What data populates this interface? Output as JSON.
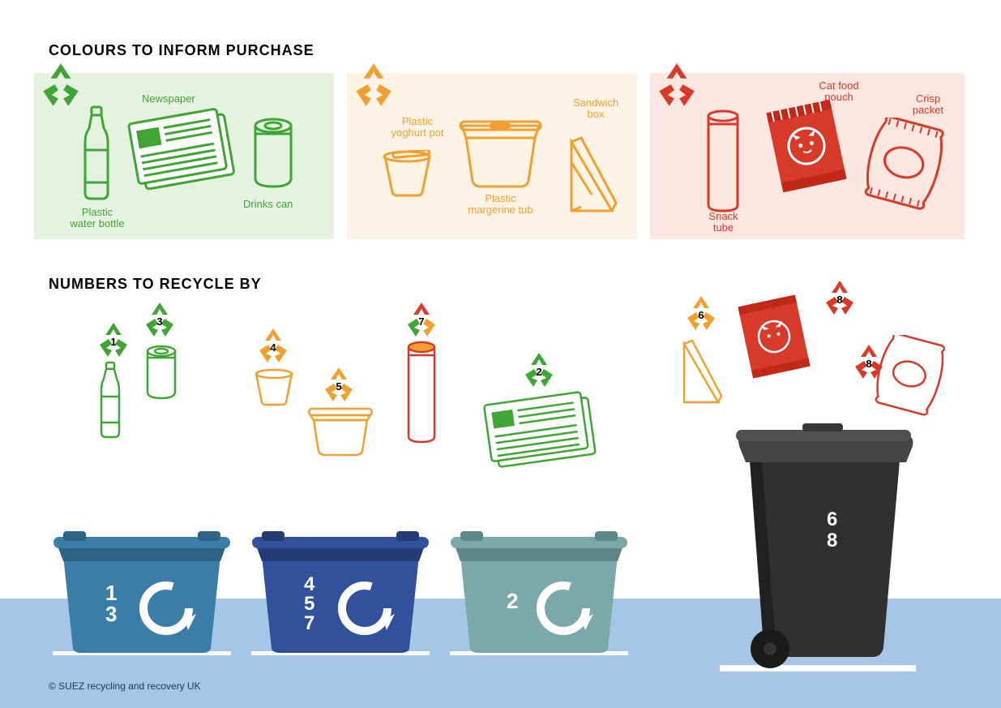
{
  "headings": {
    "colours": "COLOURS TO INFORM PURCHASE",
    "numbers": "NUMBERS TO RECYCLE BY"
  },
  "copyright": "© SUEZ recycling and recovery UK",
  "colors": {
    "green": "#3fa535",
    "green_bg": "#e6f2e0",
    "amber": "#f0a030",
    "amber_bg": "#fdf3e4",
    "red": "#d83a2a",
    "red_bg": "#fbe6e0",
    "footer": "#a5c6e6",
    "bin1": "#3a7ea8",
    "bin1_dark": "#2d6385",
    "bin2": "#31519c",
    "bin2_dark": "#243c75",
    "bin3": "#7ba8a8",
    "bin3_dark": "#5f8787",
    "wheelie": "#303030",
    "wheelie_lid": "#444444"
  },
  "panel_green": {
    "items": {
      "bottle": "Plastic\nwater bottle",
      "newspaper": "Newspaper",
      "can": "Drinks can"
    }
  },
  "panel_amber": {
    "items": {
      "yoghurt": "Plastic\nyoghurt pot",
      "tub": "Plastic\nmargerine tub",
      "sandwich": "Sandwich\nbox"
    }
  },
  "panel_red": {
    "items": {
      "tube": "Snack\ntube",
      "pouch": "Cat food\npouch",
      "crisp": "Crisp\npacket"
    }
  },
  "numbers_section": {
    "badges": {
      "bottle": "1",
      "can": "3",
      "yoghurt": "4",
      "tub": "5",
      "tube": "7",
      "newspaper": "2",
      "sandwich": "6",
      "pouch": "8",
      "crisp": "8"
    }
  },
  "bins": {
    "box1": [
      "1",
      "3"
    ],
    "box2": [
      "4",
      "5",
      "7"
    ],
    "box3": [
      "2"
    ],
    "wheelie": [
      "6",
      "8"
    ]
  }
}
